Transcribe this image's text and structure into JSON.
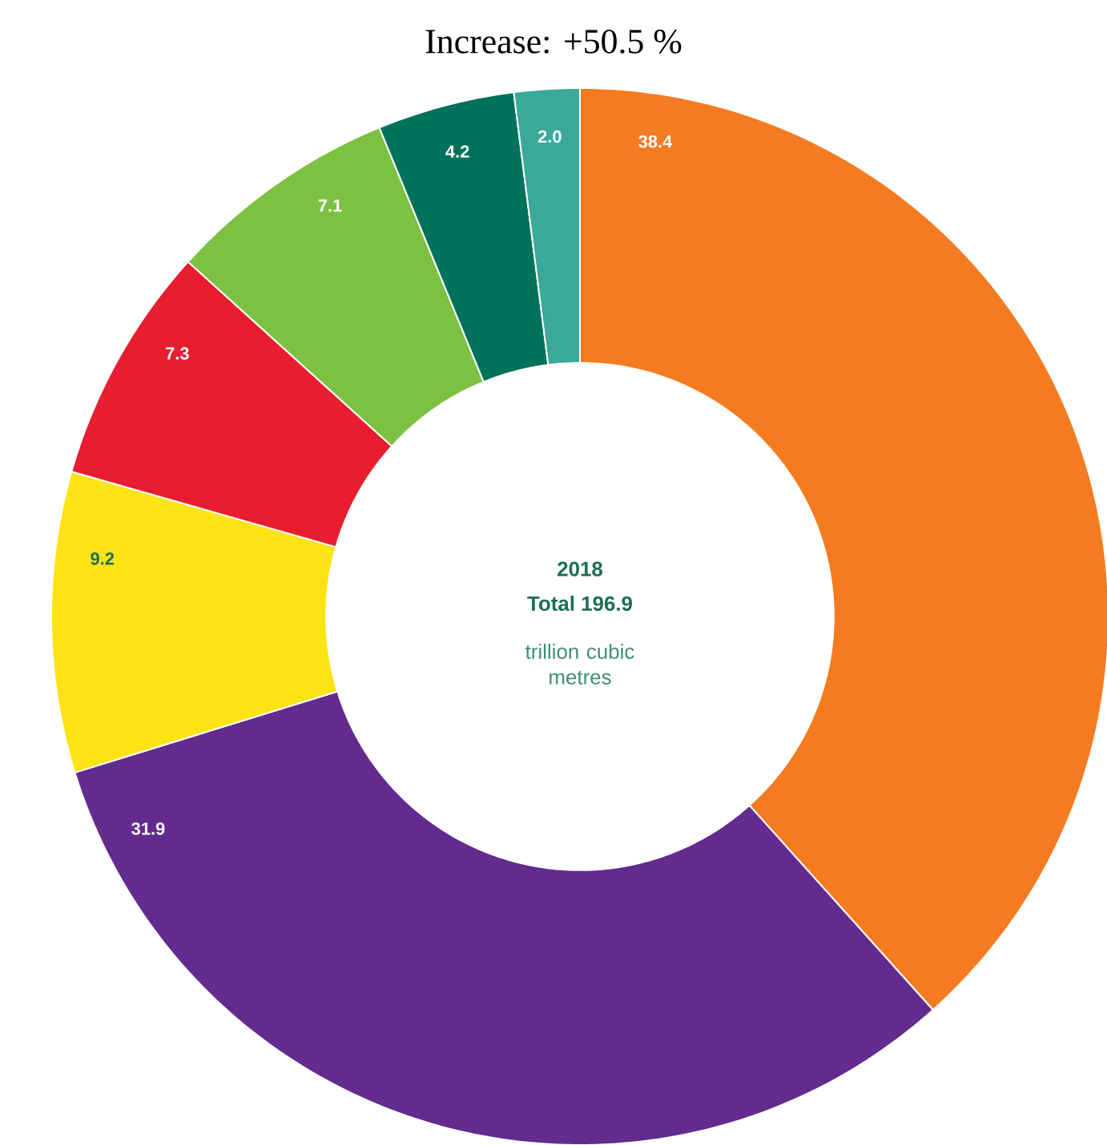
{
  "chart_data": {
    "type": "donut",
    "title": "Increase: +50.5 %",
    "categories": [
      null,
      null,
      null,
      null,
      null,
      null,
      null
    ],
    "values": [
      38.4,
      31.9,
      9.2,
      7.3,
      7.1,
      4.2,
      2.0
    ],
    "value_labels": [
      "38.4",
      "31.9",
      "9.2",
      "7.3",
      "7.1",
      "4.2",
      "2.0"
    ],
    "colors": [
      "#f47b20",
      "#632b8e",
      "#fde314",
      "#e81d2f",
      "#7dc142",
      "#00725b",
      "#3aa999"
    ],
    "annotations": [
      "2018",
      "Total 196.9",
      "trillion cubic metres"
    ]
  }
}
